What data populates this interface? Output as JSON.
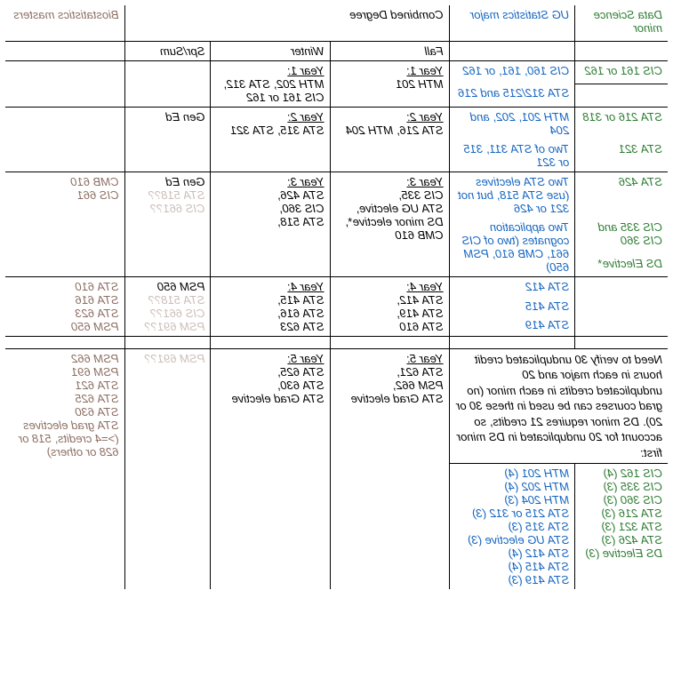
{
  "headers": {
    "c0": "Data Science minor",
    "c1": "UG Statistics major",
    "c2_span": "Combined Degree",
    "c5": "Biostatistics masters"
  },
  "subheaders": {
    "fall": "Fall",
    "winter": "Winter",
    "sprsum": "Spr/Sum"
  },
  "r1": {
    "c0": "CIS 161 or 162",
    "c1a": "CIS 160, 161, or 162",
    "c1b": "STA 312/215 and 216",
    "c2_hdr": "Year 1:",
    "c2_l": "MTH 201",
    "c3_hdr": "Year 1:",
    "c3_l1": "MTH 202, STA 312,",
    "c3_l2": "CIS 161 or 162"
  },
  "r2": {
    "c0a": "STA 216 or 318",
    "c0b": "STA 321",
    "c1a": "MTH 201, 202, and 204",
    "c1b": "Two of STA 311, 315 or 321",
    "c2_hdr": "Year 2:",
    "c2_l": "STA 216, MTH 204",
    "c3_hdr": "Year 2:",
    "c3_l": "STA 315, STA 321",
    "c4": "Gen Ed"
  },
  "r3": {
    "c0a": "STA 426",
    "c0b": "CIS 335 and CIS 360",
    "c0c": "DS Elective*",
    "c1a": "Two STA electives (use STA 518, but not 321 or 426",
    "c1b": "Two application cognates (two of CIS 661, CMB 610, PSM 650)",
    "c2_hdr": "Year 3:",
    "c2_l1": "CIS 335,",
    "c2_l2": "STA UG elective,",
    "c2_l3": "DS minor elective*,",
    "c2_l4": "CMB 610",
    "c3_hdr": "Year 3:",
    "c3_l1": "STA 426,",
    "c3_l2": "CIS 360,",
    "c3_l3": "STA 518,",
    "c4_l1": "Gen Ed",
    "c4_l2": "STA 518??",
    "c4_l3": "CIS 661??",
    "c5_l1": "CMB 610",
    "c5_l2": "CIS 661"
  },
  "r4": {
    "c1a": "STA 412",
    "c1b": "STA 415",
    "c1c": "STA 419",
    "c2_hdr": "Year 4:",
    "c2_l1": "STA 412,",
    "c2_l2": "STA 419,",
    "c2_l3": "STA 610",
    "c3_hdr": "Year 4:",
    "c3_l1": "STA 415,",
    "c3_l2": "STA 616,",
    "c3_l3": "STA 623",
    "c4_l1": "PSM 650",
    "c4_l2": "STA 518??",
    "c4_l3": "CIS 661??",
    "c4_l4": "PSM 691??",
    "c5_l1": "STA 610",
    "c5_l2": "STA 616",
    "c5_l3": "STA 623",
    "c5_l4": "PSM 650"
  },
  "r5": {
    "verify": "Need to verify 30 unduplicated credit hours in each major and 20 unduplicated credits in each minor (no grad courses can be used in these 30 or 20).  DS minor requires 21 credits, so account for 20 unduplicated in DS minor first:",
    "c2_hdr": "Year 5:",
    "c2_l1": "STA 621,",
    "c2_l2": "PSM 662,",
    "c2_l3": "STA Grad elective",
    "c3_hdr": "Year 5:",
    "c3_l1": "STA 625,",
    "c3_l2": "STA 630,",
    "c3_l3": "STA Grad elective",
    "c4_l1": "PSM 691??",
    "c5_l1": "PSM 662",
    "c5_l2": "PSM 691",
    "c5_l3": "STA 621",
    "c5_l4": "STA 625",
    "c5_l5": "STA 630",
    "c5_l6": "STA grad electives (>=4 credits, 518 or 628 or others)"
  },
  "counts": {
    "left": [
      "CIS 162 (4)",
      "CIS 335 (3)",
      "CIS 360 (3)",
      "STA 216 (3)",
      "STA 321 (3)",
      "STA 426 (3)",
      "DS Elective (3)"
    ],
    "right": [
      "MTH 201 (4)",
      "MTH 202 (4)",
      "MTH 204 (3)",
      "STA 215 or 312 (3)",
      "STA 315 (3)",
      "STA UG elective (3)",
      "STA 412 (4)",
      "STA 415 (4)",
      "STA 419 (3)"
    ]
  },
  "colors": {
    "green": "#2e7d32",
    "blue": "#1565c0",
    "black": "#000000",
    "brown": "#8d6e63"
  }
}
